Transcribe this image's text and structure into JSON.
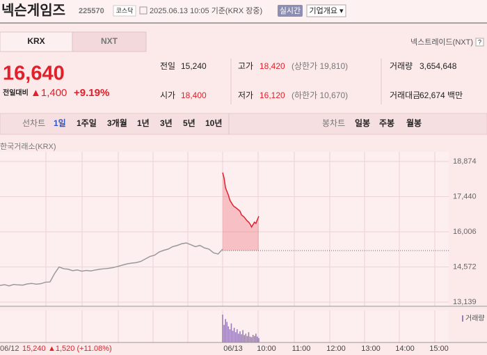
{
  "header": {
    "name": "넥슨게임즈",
    "code": "225570",
    "market": "코스닥",
    "datetime": "2025.06.13 10:05 기준(KRX 장중)",
    "realtime_button": "실시간",
    "company_button": "기업개요 ▾"
  },
  "exchange_tabs": [
    "KRX",
    "NXT"
  ],
  "nxt_link": "넥스트레이드(NXT)",
  "help": "?",
  "quote": {
    "price": "16,640",
    "change_label": "전일대비",
    "change": "▲1,400",
    "change_pct": "+9.19%",
    "stats": [
      {
        "label": "전일",
        "value": "15,240"
      },
      {
        "label": "고가",
        "value": "18,420",
        "extra": "(상한가 19,810)"
      },
      {
        "label": "거래량",
        "value": "3,654,648"
      },
      {
        "label": "시가",
        "value": "18,400"
      },
      {
        "label": "저가",
        "value": "16,120",
        "extra": "(하한가 10,670)"
      },
      {
        "label": "거래대금",
        "value": "62,674 백만"
      }
    ]
  },
  "periods": {
    "line_label": "선차트",
    "line": [
      "1일",
      "1주일",
      "3개월",
      "1년",
      "3년",
      "5년",
      "10년"
    ],
    "selected": 0,
    "candle_label": "봉차트",
    "candle": [
      "일봉",
      "주봉",
      "월봉"
    ]
  },
  "chart_data": {
    "type": "line",
    "source": "한국거래소(KRX)",
    "ylim": [
      13139,
      18874
    ],
    "yticks": [
      {
        "value": 18874,
        "label": "18,874"
      },
      {
        "value": 17440,
        "label": "17,440"
      },
      {
        "value": 16006,
        "label": "16,006"
      },
      {
        "value": 14572,
        "label": "14,572"
      },
      {
        "value": 13139,
        "label": "13,139"
      }
    ],
    "grid": true,
    "reference": 15240,
    "x_labels": [
      "06/12",
      "06/13",
      "10:00",
      "11:00",
      "12:00",
      "13:00",
      "14:00",
      "15:00"
    ],
    "series": [
      {
        "name": "06/12",
        "color": "#999999",
        "values": [
          13820,
          13850,
          13800,
          13860,
          13840,
          13830,
          13880,
          13900,
          13870,
          13890,
          13950,
          13960,
          14300,
          14570,
          14500,
          14480,
          14420,
          14450,
          14400,
          14430,
          14410,
          14450,
          14480,
          14500,
          14520,
          14550,
          14600,
          14650,
          14700,
          14730,
          14750,
          14800,
          14900,
          15000,
          15050,
          15180,
          15250,
          15300,
          15400,
          15450,
          15520,
          15550,
          15480,
          15400,
          15450,
          15350,
          15300,
          15150,
          15100,
          15300
        ]
      },
      {
        "name": "06/13",
        "color": "#e0202a",
        "values": [
          18420,
          18200,
          17800,
          17650,
          17500,
          17300,
          17200,
          17100,
          17030,
          17000,
          16950,
          16900,
          16850,
          16700,
          16650,
          16600,
          16520,
          16450,
          16400,
          16320,
          16200,
          16300,
          16400,
          16350,
          16500,
          16640
        ]
      }
    ],
    "volume_label": "거래량",
    "volume_color": "#9b7bb8",
    "volume": [
      95,
      60,
      80,
      70,
      55,
      45,
      65,
      40,
      50,
      35,
      45,
      30,
      38,
      28,
      42,
      25,
      30,
      22,
      35,
      20,
      18,
      26,
      22,
      30,
      20,
      15
    ]
  },
  "footer": {
    "date": "06/12",
    "close": "15,240",
    "change": "▲1,520 (+11.08%)"
  }
}
